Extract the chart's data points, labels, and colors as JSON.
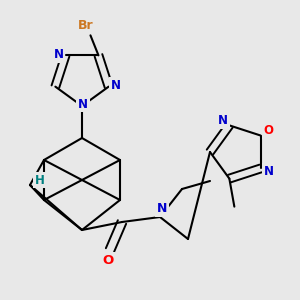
{
  "background_color": "#e8e8e8",
  "atom_colors": {
    "C": "#000000",
    "N": "#0000cc",
    "O": "#ff0000",
    "Br": "#cc7722",
    "H": "#008080"
  },
  "bond_color": "#000000",
  "font_size": 8.5
}
